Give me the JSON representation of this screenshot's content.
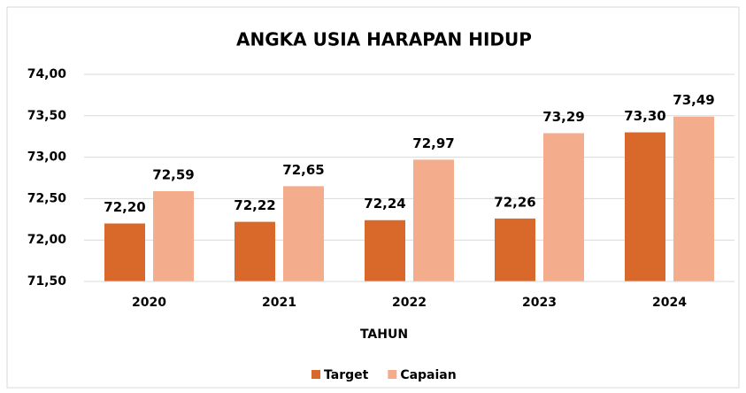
{
  "chart_data": {
    "type": "bar",
    "title": "ANGKA USIA HARAPAN HIDUP",
    "x_label": "TAHUN",
    "categories": [
      "2020",
      "2021",
      "2022",
      "2023",
      "2024"
    ],
    "series": [
      {
        "name": "Target",
        "color": "#d9692a",
        "values": [
          72.2,
          72.22,
          72.24,
          72.26,
          73.3
        ],
        "value_labels": [
          "72,20",
          "72,22",
          "72,24",
          "72,26",
          "73,30"
        ]
      },
      {
        "name": "Capaian",
        "color": "#f4ad8c",
        "values": [
          72.59,
          72.65,
          72.97,
          73.29,
          73.49
        ],
        "value_labels": [
          "72,59",
          "72,65",
          "72,97",
          "73,29",
          "73,49"
        ]
      }
    ],
    "ylim": [
      71.5,
      74.0
    ],
    "yticks": [
      {
        "value": 71.5,
        "label": "71,50"
      },
      {
        "value": 72.0,
        "label": "72,00"
      },
      {
        "value": 72.5,
        "label": "72,50"
      },
      {
        "value": 73.0,
        "label": "73,00"
      },
      {
        "value": 73.5,
        "label": "73,50"
      },
      {
        "value": 74.0,
        "label": "74,00"
      }
    ],
    "grid": true,
    "legend": "bottom"
  }
}
